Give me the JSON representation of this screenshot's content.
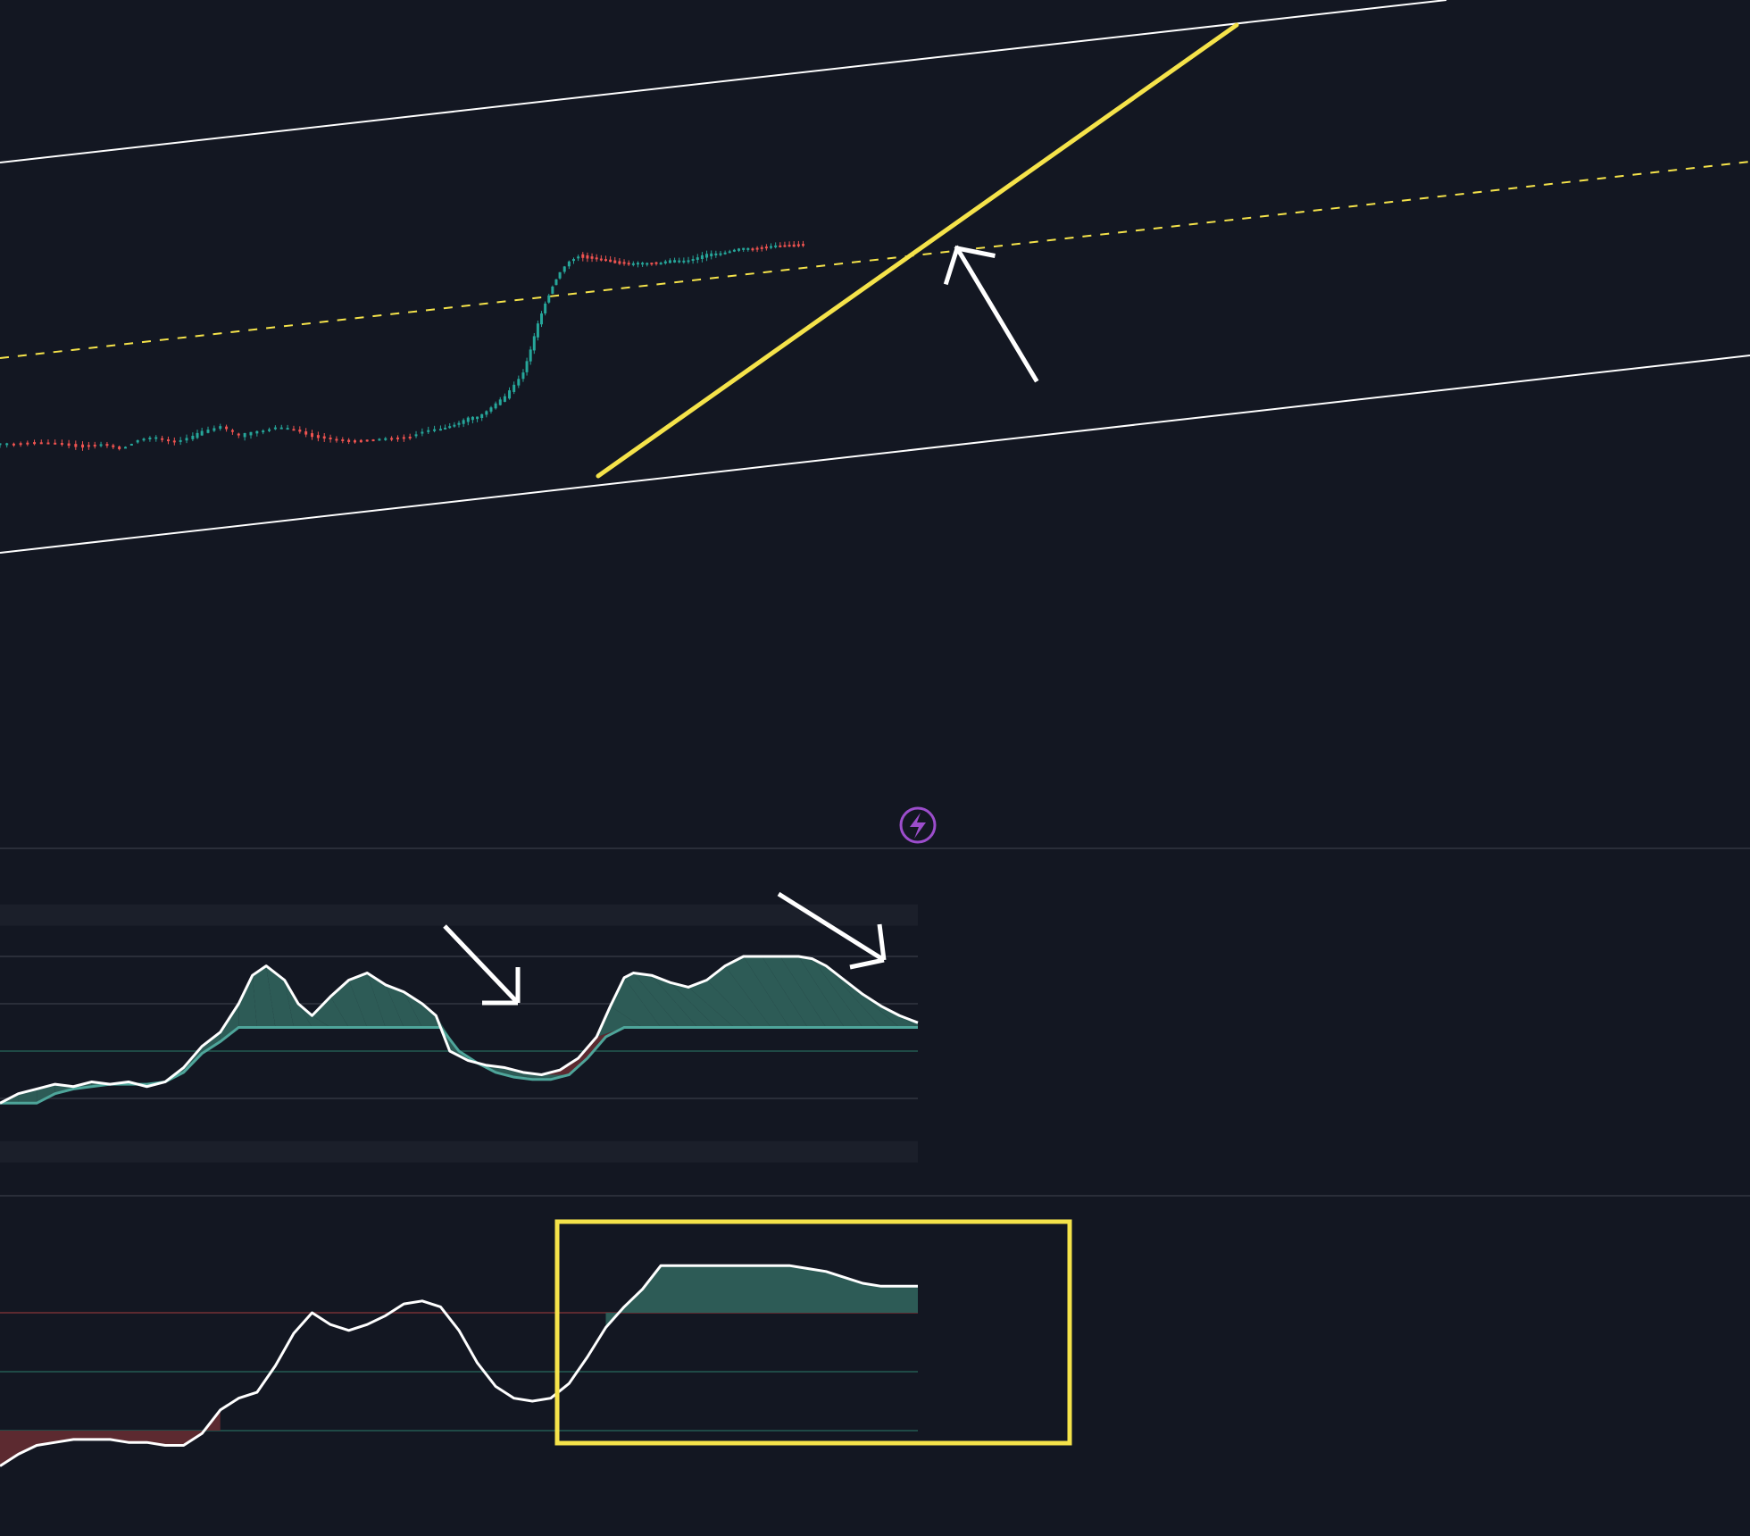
{
  "theme": {
    "background": "#131722",
    "bull_candle": "#26a69a",
    "bear_candle": "#ef5350",
    "channel_line": "#ffffff",
    "trend_line": "#f5e34a",
    "midline_dashed": "#f5e34a",
    "annotation_arrow": "#ffffff",
    "highlight_box": "#f5e34a",
    "osc_line": "#ffffff",
    "osc_fill_bull": "#2d5b56",
    "osc_fill_bull_light": "#6a9a97",
    "osc_fill_bear": "#5c2a30",
    "osc_signal_line": "#4ea59a",
    "osc_signal_bear": "#d9534f",
    "osc_extreme_mark": "#ef5350",
    "replay_badge": "#9c4dcc"
  },
  "icons": {
    "replay_badge": "lightning-icon"
  },
  "chart_data": [
    {
      "type": "candlestick",
      "pane": "price",
      "x_range": [
        0,
        100
      ],
      "y_range": [
        0,
        100
      ],
      "grid": false,
      "trend": [
        [
          0,
          13.0
        ],
        [
          3,
          13.3
        ],
        [
          6,
          13.0
        ],
        [
          9,
          12.5
        ],
        [
          11,
          12.8
        ],
        [
          13,
          12.0
        ],
        [
          15,
          14.0
        ],
        [
          17,
          14.5
        ],
        [
          19,
          13.8
        ],
        [
          21,
          14.8
        ],
        [
          22,
          16.0
        ],
        [
          24,
          17.5
        ],
        [
          26,
          15.0
        ],
        [
          28,
          16.2
        ],
        [
          30,
          17.0
        ],
        [
          32,
          16.4
        ],
        [
          34,
          15.0
        ],
        [
          36,
          14.0
        ],
        [
          38,
          13.6
        ],
        [
          40,
          13.8
        ],
        [
          42,
          14.2
        ],
        [
          44,
          14.6
        ],
        [
          46,
          15.8
        ],
        [
          48,
          16.6
        ],
        [
          49,
          17.5
        ],
        [
          50,
          18.0
        ],
        [
          51,
          19.0
        ],
        [
          52,
          19.5
        ],
        [
          53,
          21.0
        ],
        [
          54,
          22.5
        ],
        [
          55,
          24.0
        ],
        [
          56,
          27.0
        ],
        [
          57,
          30.0
        ],
        [
          57.8,
          35.0
        ],
        [
          58.6,
          41.0
        ],
        [
          59.4,
          46.0
        ],
        [
          60.2,
          50.0
        ],
        [
          61,
          53.0
        ],
        [
          62,
          55.5
        ],
        [
          63,
          57.0
        ],
        [
          64,
          56.5
        ],
        [
          65,
          56.0
        ],
        [
          66,
          55.8
        ],
        [
          67,
          55.5
        ],
        [
          68,
          55.2
        ],
        [
          69,
          55.0
        ],
        [
          70,
          55.3
        ],
        [
          71,
          55.6
        ],
        [
          72,
          55.4
        ],
        [
          73,
          55.7
        ],
        [
          74,
          55.9
        ],
        [
          75,
          56.2
        ],
        [
          76,
          56.6
        ],
        [
          77,
          57.2
        ],
        [
          78,
          57.6
        ],
        [
          79,
          58.0
        ],
        [
          80,
          58.3
        ],
        [
          81,
          58.6
        ],
        [
          82,
          58.8
        ],
        [
          83,
          59.0
        ],
        [
          84,
          59.1
        ],
        [
          85,
          59.2
        ],
        [
          86,
          59.3
        ],
        [
          87,
          59.4
        ],
        [
          88,
          59.5
        ]
      ]
    },
    {
      "type": "area",
      "pane": "oscillator-1",
      "x_range": [
        0,
        100
      ],
      "y_range": [
        0,
        100
      ],
      "grid": false,
      "oscillator_line": [
        [
          0,
          18
        ],
        [
          2,
          22
        ],
        [
          4,
          24
        ],
        [
          6,
          26
        ],
        [
          8,
          25
        ],
        [
          10,
          27
        ],
        [
          12,
          26
        ],
        [
          14,
          27
        ],
        [
          16,
          25
        ],
        [
          18,
          27
        ],
        [
          20,
          33
        ],
        [
          22,
          42
        ],
        [
          24,
          48
        ],
        [
          26,
          60
        ],
        [
          27.5,
          72
        ],
        [
          29,
          76
        ],
        [
          31,
          70
        ],
        [
          32.5,
          60
        ],
        [
          34,
          55
        ],
        [
          36,
          63
        ],
        [
          38,
          70
        ],
        [
          40,
          73
        ],
        [
          42,
          68
        ],
        [
          44,
          65
        ],
        [
          46,
          60
        ],
        [
          47.5,
          55
        ],
        [
          49,
          40
        ],
        [
          51,
          36
        ],
        [
          53,
          34
        ],
        [
          55,
          33
        ],
        [
          57,
          31
        ],
        [
          59,
          30
        ],
        [
          61,
          32
        ],
        [
          63,
          37
        ],
        [
          65,
          46
        ],
        [
          66.5,
          59
        ],
        [
          68,
          71
        ],
        [
          69,
          73
        ],
        [
          71,
          72
        ],
        [
          73,
          69
        ],
        [
          75,
          67
        ],
        [
          77,
          70
        ],
        [
          79,
          76
        ],
        [
          81,
          80
        ],
        [
          83,
          80
        ],
        [
          85,
          80
        ],
        [
          87,
          80
        ],
        [
          88.5,
          79
        ],
        [
          90,
          76
        ],
        [
          92,
          70
        ],
        [
          94,
          64
        ],
        [
          96,
          59
        ],
        [
          98,
          55
        ],
        [
          100,
          52
        ]
      ],
      "signal_line": [
        [
          0,
          18
        ],
        [
          2,
          18
        ],
        [
          4,
          18
        ],
        [
          6,
          22
        ],
        [
          8,
          24
        ],
        [
          10,
          25
        ],
        [
          12,
          26
        ],
        [
          14,
          26
        ],
        [
          16,
          26
        ],
        [
          18,
          27
        ],
        [
          20,
          31
        ],
        [
          22,
          39
        ],
        [
          24,
          44
        ],
        [
          26,
          50
        ],
        [
          28,
          50
        ],
        [
          30,
          50
        ],
        [
          32,
          50
        ],
        [
          34,
          50
        ],
        [
          36,
          50
        ],
        [
          38,
          50
        ],
        [
          40,
          50
        ],
        [
          42,
          50
        ],
        [
          44,
          50
        ],
        [
          46,
          50
        ],
        [
          48,
          50
        ],
        [
          50,
          40
        ],
        [
          52,
          35
        ],
        [
          54,
          31
        ],
        [
          56,
          29
        ],
        [
          58,
          28
        ],
        [
          60,
          28
        ],
        [
          62,
          30
        ],
        [
          64,
          37
        ],
        [
          66,
          46
        ],
        [
          68,
          50
        ],
        [
          70,
          50
        ],
        [
          72,
          50
        ],
        [
          74,
          50
        ],
        [
          76,
          50
        ],
        [
          78,
          50
        ],
        [
          80,
          50
        ],
        [
          82,
          50
        ],
        [
          84,
          50
        ],
        [
          86,
          50
        ],
        [
          88,
          50
        ],
        [
          90,
          50
        ],
        [
          92,
          50
        ],
        [
          94,
          50
        ],
        [
          96,
          50
        ],
        [
          98,
          50
        ],
        [
          100,
          50
        ]
      ],
      "levels": [
        100,
        60,
        40,
        20,
        0
      ]
    },
    {
      "type": "area",
      "pane": "oscillator-2",
      "x_range": [
        0,
        100
      ],
      "y_range": [
        0,
        100
      ],
      "grid": false,
      "oscillator_line": [
        [
          0,
          8
        ],
        [
          2,
          12
        ],
        [
          4,
          15
        ],
        [
          6,
          16
        ],
        [
          8,
          17
        ],
        [
          10,
          17
        ],
        [
          12,
          17
        ],
        [
          14,
          16
        ],
        [
          16,
          16
        ],
        [
          18,
          15
        ],
        [
          20,
          15
        ],
        [
          22,
          19
        ],
        [
          24,
          27
        ],
        [
          26,
          31
        ],
        [
          28,
          33
        ],
        [
          30,
          42
        ],
        [
          32,
          53
        ],
        [
          34,
          60
        ],
        [
          36,
          56
        ],
        [
          38,
          54
        ],
        [
          40,
          56
        ],
        [
          42,
          59
        ],
        [
          44,
          63
        ],
        [
          46,
          64
        ],
        [
          48,
          62
        ],
        [
          50,
          54
        ],
        [
          52,
          43
        ],
        [
          54,
          35
        ],
        [
          56,
          31
        ],
        [
          58,
          30
        ],
        [
          60,
          31
        ],
        [
          62,
          36
        ],
        [
          64,
          45
        ],
        [
          66,
          55
        ],
        [
          68,
          62
        ],
        [
          70,
          68
        ],
        [
          72,
          76
        ],
        [
          74,
          76
        ],
        [
          76,
          76
        ],
        [
          78,
          76
        ],
        [
          80,
          76
        ],
        [
          82,
          76
        ],
        [
          84,
          76
        ],
        [
          86,
          76
        ],
        [
          88,
          75
        ],
        [
          90,
          74
        ],
        [
          92,
          72
        ],
        [
          94,
          70
        ],
        [
          96,
          69
        ],
        [
          98,
          69
        ],
        [
          100,
          69
        ]
      ],
      "levels": [
        100,
        60,
        40,
        20,
        0
      ]
    }
  ]
}
